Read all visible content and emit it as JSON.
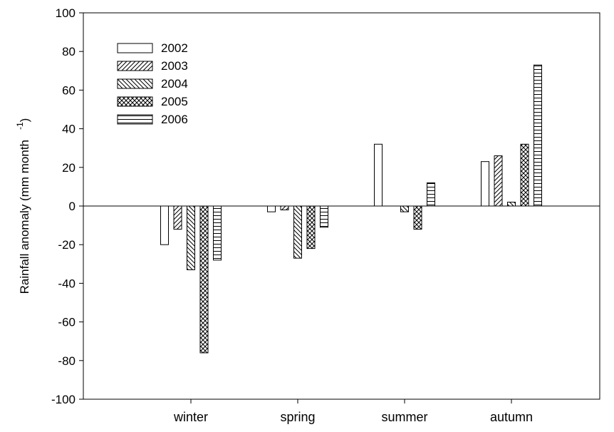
{
  "chart_data": {
    "type": "bar",
    "title": "",
    "xlabel": "",
    "ylabel": "Rainfall anomaly (mm month",
    "ylabel_superscript": "-1",
    "ylabel_close": ")",
    "ylim": [
      -100,
      100
    ],
    "yticks": [
      -100,
      -80,
      -60,
      -40,
      -20,
      0,
      20,
      40,
      60,
      80,
      100
    ],
    "categories": [
      "winter",
      "spring",
      "summer",
      "autumn"
    ],
    "legend_position": "top-left",
    "grid": false,
    "series": [
      {
        "name": "2002",
        "pattern": "none",
        "values": [
          -20,
          -3,
          32,
          23
        ]
      },
      {
        "name": "2003",
        "pattern": "diagonal-up",
        "values": [
          -12,
          -2,
          0,
          26
        ]
      },
      {
        "name": "2004",
        "pattern": "diagonal-down",
        "values": [
          -33,
          -27,
          -3,
          2
        ]
      },
      {
        "name": "2005",
        "pattern": "crosshatch",
        "values": [
          -76,
          -22,
          -12,
          32
        ]
      },
      {
        "name": "2006",
        "pattern": "horizontal",
        "values": [
          -28,
          -11,
          12,
          73
        ]
      }
    ]
  }
}
